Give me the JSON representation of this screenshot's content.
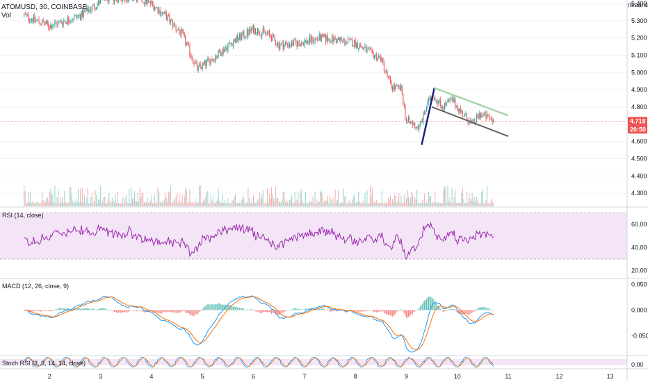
{
  "header": {
    "symbol_title": "ATOMUSD, 30, COINBASE",
    "volume_label": "Vol",
    "author_tag": "rikaanse D"
  },
  "price_tags": {
    "last_price": "4.718",
    "countdown": "20:50"
  },
  "colors": {
    "up": "#26a69a",
    "down": "#ef5350",
    "rsi_line": "#9c27b0",
    "rsi_band": "#f3e5f5",
    "macd_line": "#2196f3",
    "signal_line": "#ff6d00",
    "flag_upper": "#a5d6a7",
    "flag_lower": "#616161",
    "pole": "#1a237e",
    "price_tag_bg": "#ef5350"
  },
  "chart_data": [
    {
      "type": "candlestick",
      "title": "ATOMUSD, 30, COINBASE",
      "ylim": [
        4.22,
        5.42
      ],
      "y_ticks": [
        "5.400",
        "5.300",
        "5.200",
        "5.100",
        "5.000",
        "4.900",
        "4.800",
        "4.700",
        "4.600",
        "4.500",
        "4.400",
        "4.300"
      ],
      "x_ticks": [
        "2",
        "3",
        "4",
        "5",
        "6",
        "7",
        "8",
        "9",
        "10",
        "11",
        "12",
        "13"
      ],
      "last_price": 4.718,
      "anchors": [
        {
          "day": 1.5,
          "close": 5.33
        },
        {
          "day": 2.0,
          "close": 5.27
        },
        {
          "day": 2.6,
          "close": 5.33
        },
        {
          "day": 3.1,
          "close": 5.43
        },
        {
          "day": 3.7,
          "close": 5.43
        },
        {
          "day": 4.0,
          "close": 5.4
        },
        {
          "day": 4.3,
          "close": 5.32
        },
        {
          "day": 4.6,
          "close": 5.22
        },
        {
          "day": 4.9,
          "close": 5.02
        },
        {
          "day": 5.2,
          "close": 5.08
        },
        {
          "day": 5.6,
          "close": 5.18
        },
        {
          "day": 6.0,
          "close": 5.25
        },
        {
          "day": 6.3,
          "close": 5.22
        },
        {
          "day": 6.5,
          "close": 5.16
        },
        {
          "day": 6.9,
          "close": 5.17
        },
        {
          "day": 7.3,
          "close": 5.2
        },
        {
          "day": 7.6,
          "close": 5.19
        },
        {
          "day": 8.0,
          "close": 5.17
        },
        {
          "day": 8.3,
          "close": 5.11
        },
        {
          "day": 8.5,
          "close": 5.08
        },
        {
          "day": 8.7,
          "close": 4.92
        },
        {
          "day": 8.9,
          "close": 4.9
        },
        {
          "day": 9.0,
          "close": 4.72
        },
        {
          "day": 9.25,
          "close": 4.68
        },
        {
          "day": 9.5,
          "close": 4.88
        },
        {
          "day": 9.7,
          "close": 4.8
        },
        {
          "day": 9.9,
          "close": 4.84
        },
        {
          "day": 10.1,
          "close": 4.76
        },
        {
          "day": 10.3,
          "close": 4.7
        },
        {
          "day": 10.45,
          "close": 4.76
        },
        {
          "day": 10.7,
          "close": 4.72
        }
      ],
      "flag": {
        "pole": {
          "from": [
            9.3,
            4.58
          ],
          "to": [
            9.55,
            4.91
          ]
        },
        "upper": {
          "from": [
            9.55,
            4.91
          ],
          "to": [
            11.0,
            4.75
          ]
        },
        "lower": {
          "from": [
            9.5,
            4.8
          ],
          "to": [
            11.0,
            4.63
          ]
        }
      }
    },
    {
      "type": "line",
      "title": "RSI (14, close)",
      "ylim": [
        15,
        72
      ],
      "y_ticks": [
        "60.00",
        "40.00",
        "20.00"
      ],
      "band": [
        30,
        70
      ],
      "last_value": 46
    },
    {
      "type": "line",
      "title": "MACD (12, 26, close, 9)",
      "ylim": [
        -0.085,
        0.055
      ],
      "y_ticks": [
        "0.050",
        "0.000",
        "-0.050"
      ],
      "series": [
        {
          "name": "MACD",
          "color": "#2196f3"
        },
        {
          "name": "Signal",
          "color": "#ff6d00"
        }
      ]
    },
    {
      "type": "line",
      "title": "Stoch RSI (3, 3, 14, 14, close)",
      "y_ticks": [
        "0.00"
      ],
      "band": [
        20,
        80
      ]
    }
  ]
}
